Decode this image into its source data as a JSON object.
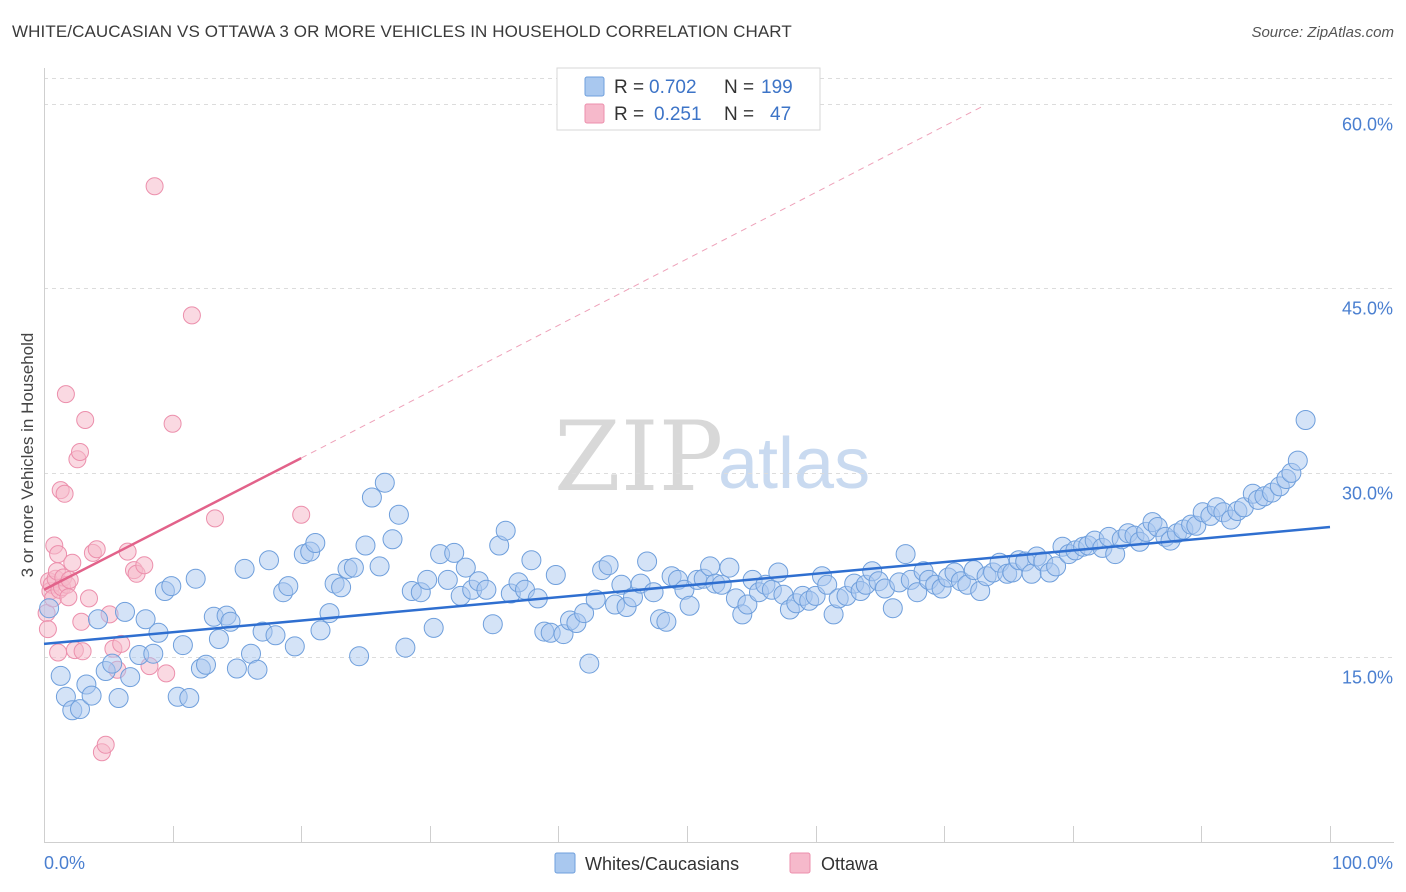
{
  "title": "WHITE/CAUCASIAN VS OTTAWA 3 OR MORE VEHICLES IN HOUSEHOLD CORRELATION CHART",
  "source": "Source: ZipAtlas.com",
  "watermark": {
    "zip": "ZIP",
    "atlas": "atlas"
  },
  "legend": {
    "items": [
      {
        "r_label": "R =",
        "r_value": "0.702",
        "n_label": "N =",
        "n_value": "199"
      },
      {
        "r_label": "R =",
        "r_value": "0.251",
        "n_label": "N =",
        "n_value": "47"
      }
    ]
  },
  "bottom_legend": [
    "Whites/Caucasians",
    "Ottawa"
  ],
  "colors": {
    "blue_fill": "#a9c8ef",
    "blue_stroke": "#6f9fdc",
    "blue_line": "#2f6fd0",
    "pink_fill": "#f6b9cb",
    "pink_stroke": "#ec8fac",
    "pink_line": "#e2628a",
    "grid": "#dcdcdc",
    "axis_tick_text": "#4a7fd0"
  },
  "chart_data": {
    "type": "scatter",
    "title": "WHITE/CAUCASIAN VS OTTAWA 3 OR MORE VEHICLES IN HOUSEHOLD CORRELATION CHART",
    "xlabel": "",
    "ylabel": "3 or more Vehicles in Household",
    "xlim": [
      0,
      100
    ],
    "ylim": [
      0,
      62.5
    ],
    "x_tick_labels": [
      "0.0%",
      "100.0%"
    ],
    "y_ticks": [
      15,
      30,
      45,
      60
    ],
    "y_tick_labels": [
      "15.0%",
      "30.0%",
      "45.0%",
      "60.0%"
    ],
    "grid": true,
    "series": [
      {
        "name": "Whites/Caucasians",
        "color": "blue",
        "r": 0.702,
        "n": 199,
        "trend": {
          "x": [
            0,
            100
          ],
          "y": [
            16.1,
            25.6
          ]
        },
        "points": [
          [
            0.4,
            19.0
          ],
          [
            1.3,
            13.5
          ],
          [
            1.7,
            11.8
          ],
          [
            2.2,
            10.7
          ],
          [
            2.8,
            10.8
          ],
          [
            3.3,
            12.8
          ],
          [
            3.7,
            11.9
          ],
          [
            4.2,
            18.1
          ],
          [
            4.8,
            13.9
          ],
          [
            5.3,
            14.5
          ],
          [
            5.8,
            11.7
          ],
          [
            6.3,
            18.7
          ],
          [
            6.7,
            13.4
          ],
          [
            7.4,
            15.2
          ],
          [
            7.9,
            18.1
          ],
          [
            8.5,
            15.3
          ],
          [
            8.9,
            17.0
          ],
          [
            9.4,
            20.4
          ],
          [
            9.9,
            20.8
          ],
          [
            10.4,
            11.8
          ],
          [
            10.8,
            16.0
          ],
          [
            11.3,
            11.7
          ],
          [
            11.8,
            21.4
          ],
          [
            12.2,
            14.1
          ],
          [
            12.6,
            14.4
          ],
          [
            13.2,
            18.3
          ],
          [
            13.6,
            16.5
          ],
          [
            14.2,
            18.4
          ],
          [
            14.5,
            17.9
          ],
          [
            15.0,
            14.1
          ],
          [
            15.6,
            22.2
          ],
          [
            16.1,
            15.3
          ],
          [
            16.6,
            14.0
          ],
          [
            17.0,
            17.1
          ],
          [
            17.5,
            22.9
          ],
          [
            18.0,
            16.8
          ],
          [
            18.6,
            20.3
          ],
          [
            19.0,
            20.8
          ],
          [
            19.5,
            15.9
          ],
          [
            20.2,
            23.4
          ],
          [
            20.7,
            23.6
          ],
          [
            21.1,
            24.3
          ],
          [
            21.5,
            17.2
          ],
          [
            22.2,
            18.6
          ],
          [
            22.6,
            21.0
          ],
          [
            23.1,
            20.7
          ],
          [
            23.6,
            22.2
          ],
          [
            24.1,
            22.3
          ],
          [
            24.5,
            15.1
          ],
          [
            25.0,
            24.1
          ],
          [
            25.5,
            28.0
          ],
          [
            26.1,
            22.4
          ],
          [
            26.5,
            29.2
          ],
          [
            27.1,
            24.6
          ],
          [
            27.6,
            26.6
          ],
          [
            28.1,
            15.8
          ],
          [
            28.6,
            20.4
          ],
          [
            29.3,
            20.3
          ],
          [
            29.8,
            21.3
          ],
          [
            30.3,
            17.4
          ],
          [
            30.8,
            23.4
          ],
          [
            31.4,
            21.3
          ],
          [
            31.9,
            23.5
          ],
          [
            32.4,
            20.0
          ],
          [
            32.8,
            22.3
          ],
          [
            33.3,
            20.5
          ],
          [
            33.8,
            21.2
          ],
          [
            34.4,
            20.5
          ],
          [
            34.9,
            17.7
          ],
          [
            35.4,
            24.1
          ],
          [
            35.9,
            25.3
          ],
          [
            36.3,
            20.2
          ],
          [
            36.9,
            21.1
          ],
          [
            37.4,
            20.5
          ],
          [
            37.9,
            22.9
          ],
          [
            38.4,
            19.8
          ],
          [
            38.9,
            17.1
          ],
          [
            39.4,
            17.0
          ],
          [
            39.8,
            21.7
          ],
          [
            40.4,
            16.9
          ],
          [
            40.9,
            18.0
          ],
          [
            41.4,
            17.8
          ],
          [
            42.0,
            18.6
          ],
          [
            42.4,
            14.5
          ],
          [
            42.9,
            19.7
          ],
          [
            43.4,
            22.1
          ],
          [
            43.9,
            22.5
          ],
          [
            44.4,
            19.3
          ],
          [
            44.9,
            20.9
          ],
          [
            45.3,
            19.1
          ],
          [
            45.8,
            19.9
          ],
          [
            46.4,
            21.0
          ],
          [
            46.9,
            22.8
          ],
          [
            47.4,
            20.3
          ],
          [
            47.9,
            18.1
          ],
          [
            48.4,
            17.9
          ],
          [
            48.8,
            21.6
          ],
          [
            49.3,
            21.3
          ],
          [
            49.8,
            20.5
          ],
          [
            50.2,
            19.2
          ],
          [
            50.8,
            21.3
          ],
          [
            51.3,
            21.4
          ],
          [
            51.8,
            22.4
          ],
          [
            52.2,
            21.0
          ],
          [
            52.7,
            20.9
          ],
          [
            53.3,
            22.3
          ],
          [
            53.8,
            19.8
          ],
          [
            54.3,
            18.5
          ],
          [
            54.7,
            19.3
          ],
          [
            55.1,
            21.3
          ],
          [
            55.6,
            20.3
          ],
          [
            56.1,
            20.9
          ],
          [
            56.6,
            20.5
          ],
          [
            57.1,
            21.9
          ],
          [
            57.5,
            20.1
          ],
          [
            58.0,
            18.9
          ],
          [
            58.5,
            19.4
          ],
          [
            59.0,
            20.0
          ],
          [
            59.5,
            19.6
          ],
          [
            60.0,
            20.0
          ],
          [
            60.5,
            21.6
          ],
          [
            60.9,
            20.9
          ],
          [
            61.4,
            18.5
          ],
          [
            61.8,
            19.8
          ],
          [
            62.4,
            20.0
          ],
          [
            63.0,
            21.0
          ],
          [
            63.5,
            20.4
          ],
          [
            63.9,
            20.9
          ],
          [
            64.4,
            22.0
          ],
          [
            64.9,
            21.2
          ],
          [
            65.4,
            20.6
          ],
          [
            66.0,
            19.0
          ],
          [
            66.5,
            21.1
          ],
          [
            67.0,
            23.4
          ],
          [
            67.4,
            21.3
          ],
          [
            67.9,
            20.3
          ],
          [
            68.4,
            22.0
          ],
          [
            68.8,
            21.3
          ],
          [
            69.3,
            20.9
          ],
          [
            69.8,
            20.6
          ],
          [
            70.3,
            21.5
          ],
          [
            70.8,
            21.9
          ],
          [
            71.3,
            21.2
          ],
          [
            71.8,
            20.9
          ],
          [
            72.3,
            22.1
          ],
          [
            72.8,
            20.4
          ],
          [
            73.3,
            21.6
          ],
          [
            73.8,
            21.9
          ],
          [
            74.3,
            22.7
          ],
          [
            74.9,
            21.8
          ],
          [
            75.3,
            21.9
          ],
          [
            75.8,
            22.9
          ],
          [
            76.3,
            22.8
          ],
          [
            76.8,
            21.8
          ],
          [
            77.2,
            23.2
          ],
          [
            77.7,
            22.8
          ],
          [
            78.2,
            21.9
          ],
          [
            78.7,
            22.4
          ],
          [
            79.2,
            24.0
          ],
          [
            79.7,
            23.4
          ],
          [
            80.2,
            23.7
          ],
          [
            80.8,
            24.0
          ],
          [
            81.2,
            24.1
          ],
          [
            81.7,
            24.5
          ],
          [
            82.3,
            23.9
          ],
          [
            82.8,
            24.8
          ],
          [
            83.3,
            23.4
          ],
          [
            83.8,
            24.6
          ],
          [
            84.3,
            25.1
          ],
          [
            84.8,
            24.9
          ],
          [
            85.2,
            24.4
          ],
          [
            85.7,
            25.2
          ],
          [
            86.2,
            26.0
          ],
          [
            86.6,
            25.6
          ],
          [
            87.2,
            24.8
          ],
          [
            87.6,
            24.5
          ],
          [
            88.1,
            25.1
          ],
          [
            88.6,
            25.4
          ],
          [
            89.2,
            25.8
          ],
          [
            89.6,
            25.7
          ],
          [
            90.1,
            26.8
          ],
          [
            90.7,
            26.5
          ],
          [
            91.2,
            27.2
          ],
          [
            91.7,
            26.8
          ],
          [
            92.3,
            26.2
          ],
          [
            92.8,
            26.9
          ],
          [
            93.3,
            27.2
          ],
          [
            94.0,
            28.3
          ],
          [
            94.4,
            27.8
          ],
          [
            94.9,
            28.1
          ],
          [
            95.5,
            28.4
          ],
          [
            96.1,
            28.9
          ],
          [
            96.6,
            29.5
          ],
          [
            97.0,
            30.0
          ],
          [
            97.5,
            31.0
          ],
          [
            98.1,
            34.3
          ]
        ]
      },
      {
        "name": "Ottawa",
        "color": "pink",
        "r": 0.251,
        "n": 47,
        "trend": {
          "x": [
            0,
            20
          ],
          "y": [
            20.5,
            31.2
          ]
        },
        "trend_extended": {
          "x": [
            20,
            73
          ],
          "y": [
            31.2,
            59.8
          ]
        },
        "points": [
          [
            0.2,
            18.6
          ],
          [
            0.4,
            21.2
          ],
          [
            0.5,
            20.4
          ],
          [
            0.6,
            20.9
          ],
          [
            0.7,
            19.8
          ],
          [
            0.8,
            24.1
          ],
          [
            0.9,
            21.4
          ],
          [
            1.0,
            22.0
          ],
          [
            1.1,
            23.4
          ],
          [
            1.2,
            20.5
          ],
          [
            1.3,
            28.6
          ],
          [
            1.4,
            20.7
          ],
          [
            1.5,
            21.5
          ],
          [
            1.6,
            28.3
          ],
          [
            1.7,
            36.4
          ],
          [
            1.8,
            20.9
          ],
          [
            1.9,
            19.9
          ],
          [
            2.0,
            21.3
          ],
          [
            2.2,
            22.7
          ],
          [
            2.4,
            15.6
          ],
          [
            2.6,
            31.1
          ],
          [
            2.8,
            31.7
          ],
          [
            3.0,
            15.5
          ],
          [
            3.2,
            34.3
          ],
          [
            3.5,
            19.8
          ],
          [
            3.8,
            23.5
          ],
          [
            4.1,
            23.8
          ],
          [
            4.5,
            7.3
          ],
          [
            4.8,
            7.9
          ],
          [
            5.1,
            18.5
          ],
          [
            5.4,
            15.7
          ],
          [
            5.7,
            14.0
          ],
          [
            6.0,
            16.1
          ],
          [
            6.5,
            23.6
          ],
          [
            7.0,
            22.1
          ],
          [
            7.2,
            21.8
          ],
          [
            7.8,
            22.5
          ],
          [
            8.2,
            14.3
          ],
          [
            8.6,
            53.3
          ],
          [
            9.5,
            13.7
          ],
          [
            10.0,
            34.0
          ],
          [
            11.5,
            42.8
          ],
          [
            13.3,
            26.3
          ],
          [
            20.0,
            26.6
          ],
          [
            0.3,
            17.3
          ],
          [
            1.1,
            15.4
          ],
          [
            2.9,
            17.9
          ]
        ]
      }
    ]
  }
}
